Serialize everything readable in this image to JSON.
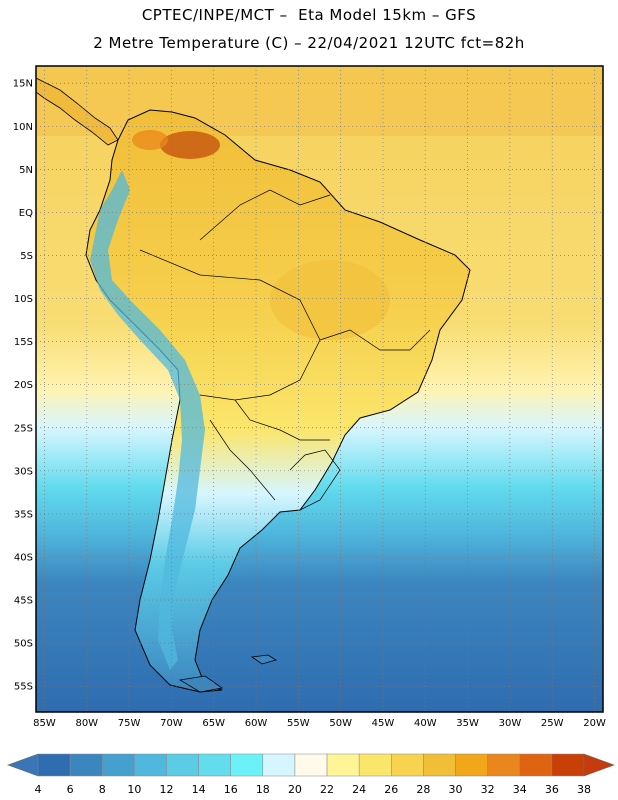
{
  "header": {
    "title_line1": "CPTEC/INPE/MCT –  Eta Model 15km – GFS",
    "title_line2": "2 Metre Temperature (C) – 22/04/2021 12UTC fct=82h"
  },
  "map": {
    "lat_labels": [
      "15N",
      "10N",
      "5N",
      "EQ",
      "5S",
      "10S",
      "15S",
      "20S",
      "25S",
      "30S",
      "35S",
      "40S",
      "45S",
      "50S",
      "55S"
    ],
    "lon_labels": [
      "85W",
      "80W",
      "75W",
      "70W",
      "65W",
      "60W",
      "55W",
      "50W",
      "45W",
      "40W",
      "35W",
      "30W",
      "25W",
      "20W"
    ],
    "lat_values": [
      15,
      10,
      5,
      0,
      -5,
      -10,
      -15,
      -20,
      -25,
      -30,
      -35,
      -40,
      -45,
      -50,
      -55
    ],
    "lon_values": [
      -85,
      -80,
      -75,
      -70,
      -65,
      -60,
      -55,
      -50,
      -45,
      -40,
      -35,
      -30,
      -25,
      -20
    ],
    "lat_range": [
      -58,
      17
    ],
    "lon_range": [
      -86,
      -19
    ],
    "grid": true
  },
  "colorbar": {
    "labels": [
      "4",
      "6",
      "8",
      "10",
      "12",
      "14",
      "16",
      "18",
      "20",
      "22",
      "24",
      "26",
      "28",
      "30",
      "32",
      "34",
      "36",
      "38"
    ],
    "colors": [
      "#2f6cb0",
      "#3c86c0",
      "#45a0cf",
      "#50b8de",
      "#5bcbe6",
      "#63dcee",
      "#6cf1f9",
      "#d6f6ff",
      "#fffaeb",
      "#fff597",
      "#fbe66c",
      "#f7d350",
      "#f1be38",
      "#f2a61a",
      "#e9871e",
      "#de6412",
      "#c93f08"
    ],
    "low_color": "#3a75b8",
    "high_color": "#c63a0c"
  }
}
